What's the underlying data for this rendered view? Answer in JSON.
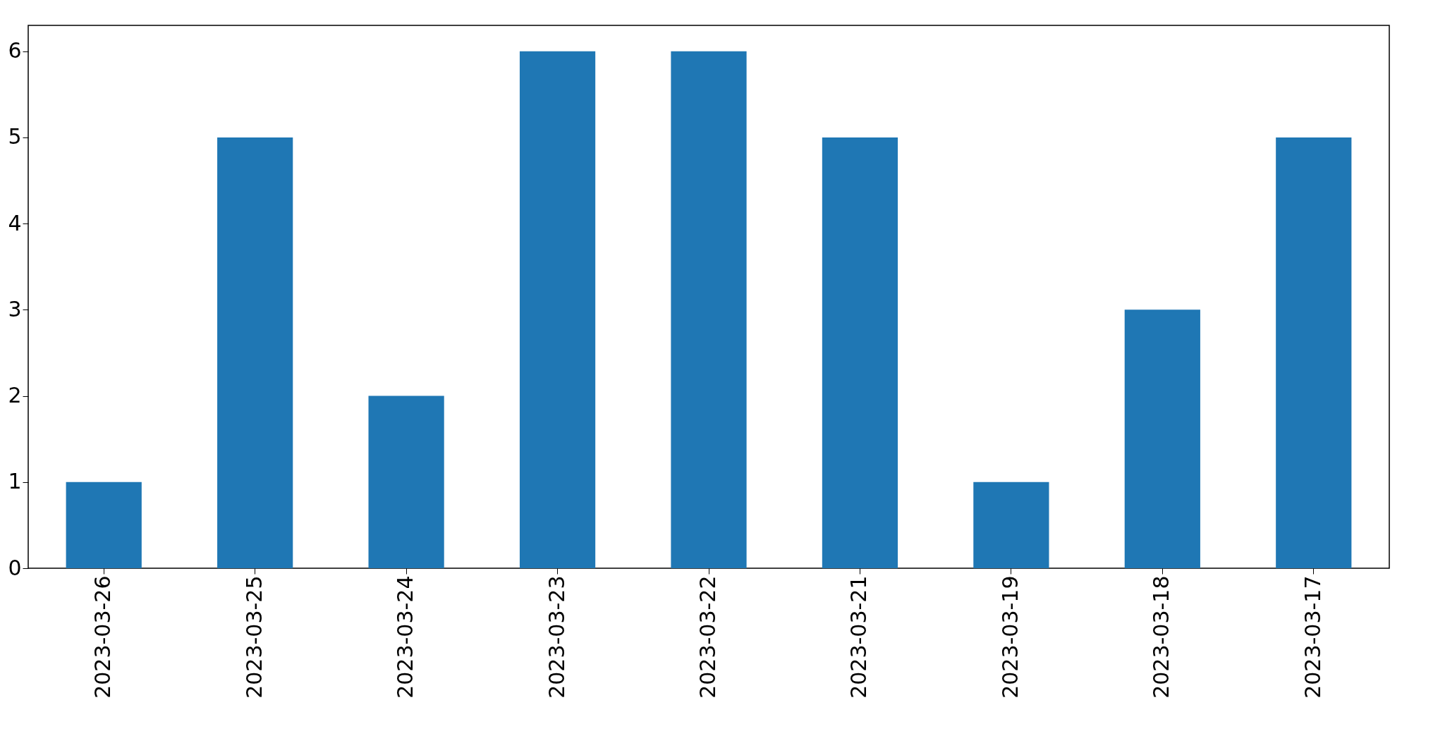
{
  "chart_data": {
    "type": "bar",
    "categories": [
      "2023-03-26",
      "2023-03-25",
      "2023-03-24",
      "2023-03-23",
      "2023-03-22",
      "2023-03-21",
      "2023-03-19",
      "2023-03-18",
      "2023-03-17"
    ],
    "values": [
      1,
      5,
      2,
      6,
      6,
      5,
      1,
      3,
      5
    ],
    "color": "#1f77b4",
    "ylim": [
      0,
      6.3
    ],
    "yticks": [
      0,
      1,
      2,
      3,
      4,
      5,
      6
    ],
    "grid": false
  }
}
